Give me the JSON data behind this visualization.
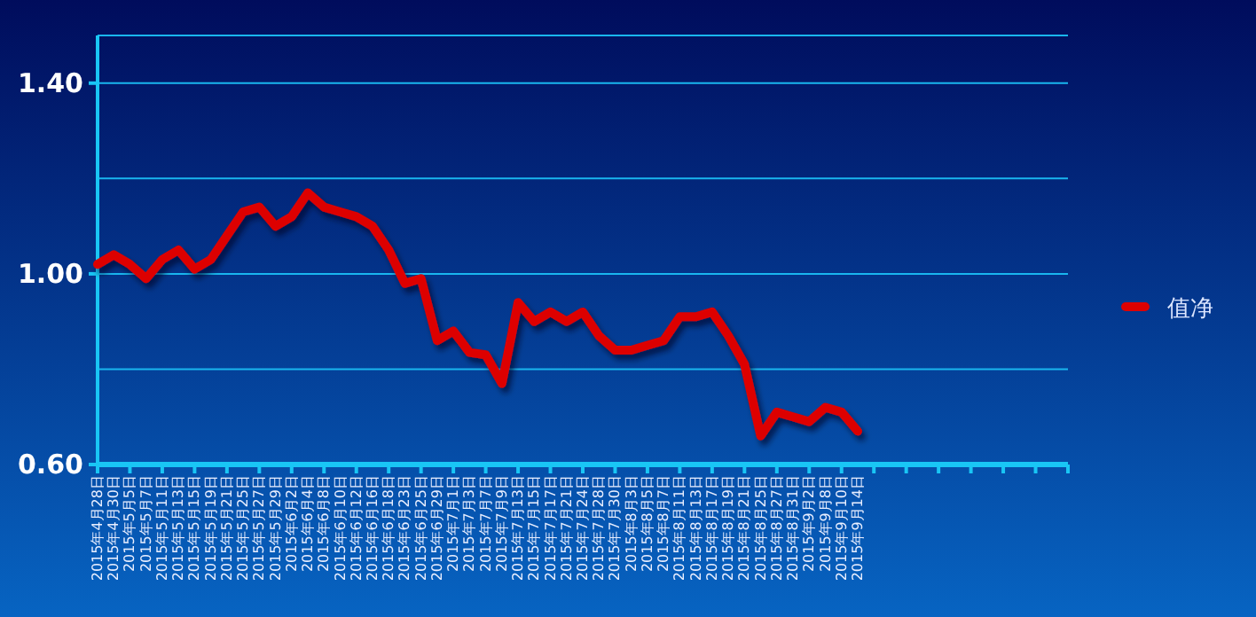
{
  "chart_data": {
    "type": "line",
    "categories": [
      "2015年4月28日",
      "2015年4月30日",
      "2015年5月5日",
      "2015年5月7日",
      "2015年5月11日",
      "2015年5月13日",
      "2015年5月15日",
      "2015年5月19日",
      "2015年5月21日",
      "2015年5月25日",
      "2015年5月27日",
      "2015年5月29日",
      "2015年6月2日",
      "2015年6月4日",
      "2015年6月8日",
      "2015年6月10日",
      "2015年6月12日",
      "2015年6月16日",
      "2015年6月18日",
      "2015年6月23日",
      "2015年6月25日",
      "2015年6月29日",
      "2015年7月1日",
      "2015年7月3日",
      "2015年7月7日",
      "2015年7月9日",
      "2015年7月13日",
      "2015年7月15日",
      "2015年7月17日",
      "2015年7月21日",
      "2015年7月24日",
      "2015年7月28日",
      "2015年7月30日",
      "2015年8月3日",
      "2015年8月5日",
      "2015年8月7日",
      "2015年8月11日",
      "2015年8月13日",
      "2015年8月17日",
      "2015年8月19日",
      "2015年8月21日",
      "2015年8月25日",
      "2015年8月27日",
      "2015年8月31日",
      "2015年9月2日",
      "2015年9月8日",
      "2015年9月10日",
      "2015年9月14日",
      null,
      null,
      null,
      null,
      null,
      null,
      null,
      null,
      null,
      null,
      null,
      null,
      null
    ],
    "series": [
      {
        "name": "值净",
        "color": "#dd0000",
        "values": [
          1.02,
          1.04,
          1.02,
          0.99,
          1.03,
          1.05,
          1.01,
          1.03,
          1.08,
          1.13,
          1.14,
          1.1,
          1.12,
          1.17,
          1.14,
          1.13,
          1.12,
          1.1,
          1.05,
          0.98,
          0.99,
          0.86,
          0.88,
          0.835,
          0.83,
          0.77,
          0.94,
          0.9,
          0.92,
          0.9,
          0.92,
          0.87,
          0.84,
          0.84,
          0.85,
          0.86,
          0.91,
          0.91,
          0.92,
          0.87,
          0.81,
          0.66,
          0.71,
          0.7,
          0.69,
          0.72,
          0.71,
          0.67,
          null,
          null,
          null,
          null,
          null,
          null,
          null,
          null,
          null,
          null,
          null,
          null,
          null
        ]
      }
    ],
    "ylim": [
      0.6,
      1.5
    ],
    "yticks": [
      {
        "value": 0.6,
        "label": "0.60"
      },
      {
        "value": 0.8,
        "label": null
      },
      {
        "value": 1.0,
        "label": "1.00"
      },
      {
        "value": 1.2,
        "label": null
      },
      {
        "value": 1.4,
        "label": "1.40"
      }
    ],
    "grid": "y",
    "legend": "right",
    "marker": "none",
    "line_style": "solid"
  }
}
